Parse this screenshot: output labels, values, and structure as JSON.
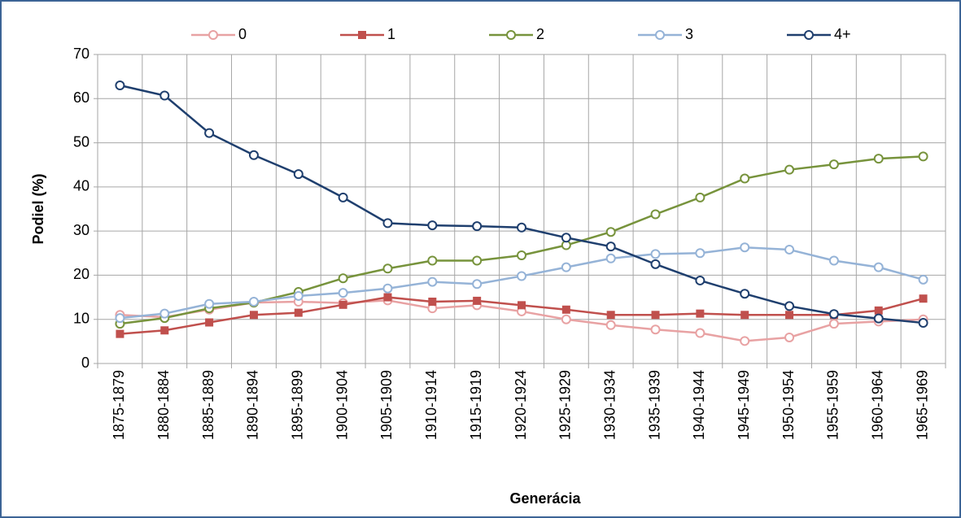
{
  "chart_data": {
    "type": "line",
    "xlabel": "Generácia",
    "ylabel": "Podiel (%)",
    "categories": [
      "1875-1879",
      "1880-1884",
      "1885-1889",
      "1890-1894",
      "1895-1899",
      "1900-1904",
      "1905-1909",
      "1910-1914",
      "1915-1919",
      "1920-1924",
      "1925-1929",
      "1930-1934",
      "1935-1939",
      "1940-1944",
      "1945-1949",
      "1950-1954",
      "1955-1959",
      "1960-1964",
      "1965-1969"
    ],
    "series": [
      {
        "name": "0",
        "color": "#e8a2a3",
        "marker": "circle",
        "values": [
          11,
          10.5,
          12.2,
          13.8,
          14,
          13.7,
          14.3,
          12.5,
          13.2,
          11.8,
          10,
          8.7,
          7.7,
          6.9,
          5.1,
          5.9,
          9,
          9.5,
          10
        ]
      },
      {
        "name": "1",
        "color": "#c0504d",
        "marker": "square",
        "values": [
          6.7,
          7.5,
          9.3,
          11,
          11.5,
          13.3,
          15,
          14,
          14.2,
          13.2,
          12.2,
          11,
          11,
          11.3,
          11,
          11,
          11,
          12,
          14.7
        ]
      },
      {
        "name": "2",
        "color": "#77933c",
        "marker": "circle",
        "values": [
          9,
          10.3,
          12.5,
          13.8,
          16.2,
          19.3,
          21.5,
          23.3,
          23.3,
          24.5,
          26.8,
          29.8,
          33.8,
          37.6,
          41.9,
          43.9,
          45.1,
          46.4,
          46.9
        ]
      },
      {
        "name": "3",
        "color": "#95b3d7",
        "marker": "circle",
        "values": [
          10.3,
          11.3,
          13.5,
          14,
          15.3,
          16,
          17,
          18.5,
          18,
          19.8,
          21.8,
          23.8,
          24.8,
          25,
          26.3,
          25.8,
          23.3,
          21.8,
          19
        ]
      },
      {
        "name": "4+",
        "color": "#1f3f6e",
        "marker": "circle",
        "values": [
          63,
          60.7,
          52.2,
          47.2,
          42.9,
          37.6,
          31.8,
          31.3,
          31.1,
          30.8,
          28.5,
          26.5,
          22.5,
          18.8,
          15.8,
          13,
          11.2,
          10.2,
          9.2
        ]
      }
    ],
    "ylim": [
      0,
      70
    ],
    "yticks": [
      0,
      10,
      20,
      30,
      40,
      50,
      60,
      70
    ],
    "grid": true,
    "legend": "top"
  }
}
